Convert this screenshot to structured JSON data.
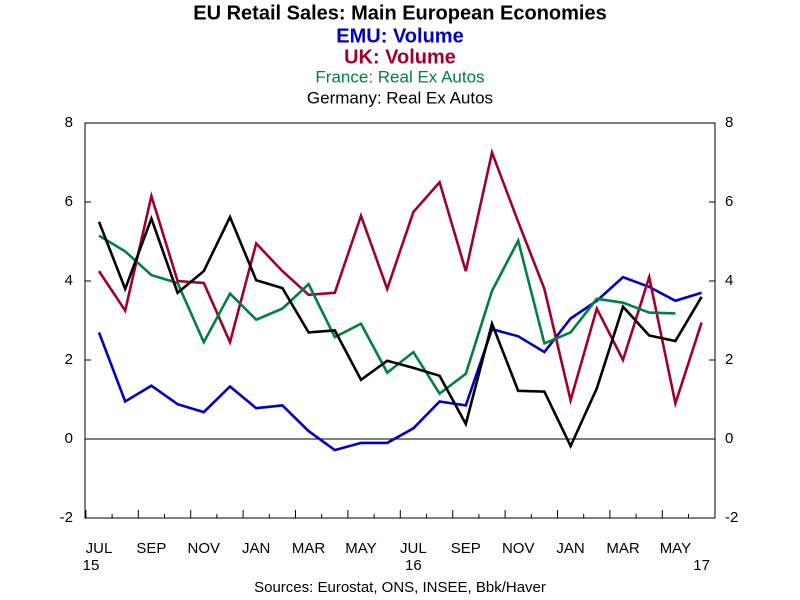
{
  "chart_data": {
    "type": "line",
    "title": "EU Retail Sales: Main European Economies",
    "categories": [
      "JUL",
      null,
      "SEP",
      null,
      "NOV",
      null,
      "JAN",
      null,
      "MAR",
      null,
      "MAY",
      null,
      "JUL",
      null,
      "SEP",
      null,
      "NOV",
      null,
      "JAN",
      null,
      "MAR",
      null,
      "MAY",
      null
    ],
    "year_labels": [
      {
        "text": "15",
        "index": 0
      },
      {
        "text": "16",
        "index": 12
      },
      {
        "text": "17",
        "index": 23
      }
    ],
    "series": [
      {
        "name": "EMU: Volume",
        "color": "#0000c0",
        "values": [
          2.7,
          0.95,
          1.35,
          0.88,
          0.68,
          1.33,
          0.78,
          0.85,
          0.2,
          -0.28,
          -0.1,
          -0.1,
          0.27,
          0.95,
          0.85,
          2.78,
          2.6,
          2.2,
          3.05,
          3.5,
          4.1,
          3.85,
          3.5,
          3.7
        ]
      },
      {
        "name": "UK: Volume",
        "color": "#a00030",
        "values": [
          4.25,
          3.25,
          6.15,
          4.0,
          3.95,
          2.45,
          4.95,
          4.25,
          3.65,
          3.7,
          5.65,
          3.8,
          5.75,
          6.5,
          4.25,
          7.25,
          5.5,
          3.8,
          0.98,
          3.3,
          2.0,
          4.1,
          0.9,
          2.95
        ]
      },
      {
        "name": "France: Real Ex Autos",
        "color": "#008040",
        "values": [
          5.15,
          4.75,
          4.15,
          3.95,
          2.45,
          3.68,
          3.02,
          3.3,
          3.92,
          2.58,
          2.92,
          1.68,
          2.2,
          1.15,
          1.65,
          3.75,
          5.02,
          2.42,
          2.7,
          3.55,
          3.45,
          3.2,
          3.18,
          null
        ]
      },
      {
        "name": "Germany: Real Ex Autos",
        "color": "#000000",
        "values": [
          5.5,
          3.8,
          5.58,
          3.7,
          4.25,
          5.62,
          4.02,
          3.82,
          2.7,
          2.75,
          1.5,
          1.98,
          1.8,
          1.6,
          0.38,
          2.92,
          1.22,
          1.2,
          -0.18,
          1.28,
          3.35,
          2.62,
          2.48,
          3.6
        ]
      }
    ],
    "ylim": [
      -2,
      8
    ],
    "yticks": [
      -2,
      0,
      2,
      4,
      6,
      8
    ],
    "y2lim": [
      -2,
      8
    ],
    "y2ticks": [
      -2,
      0,
      2,
      4,
      6,
      8
    ],
    "zero_line": true,
    "source": "Sources:  Eurostat, ONS, INSEE, Bbk/Haver"
  }
}
